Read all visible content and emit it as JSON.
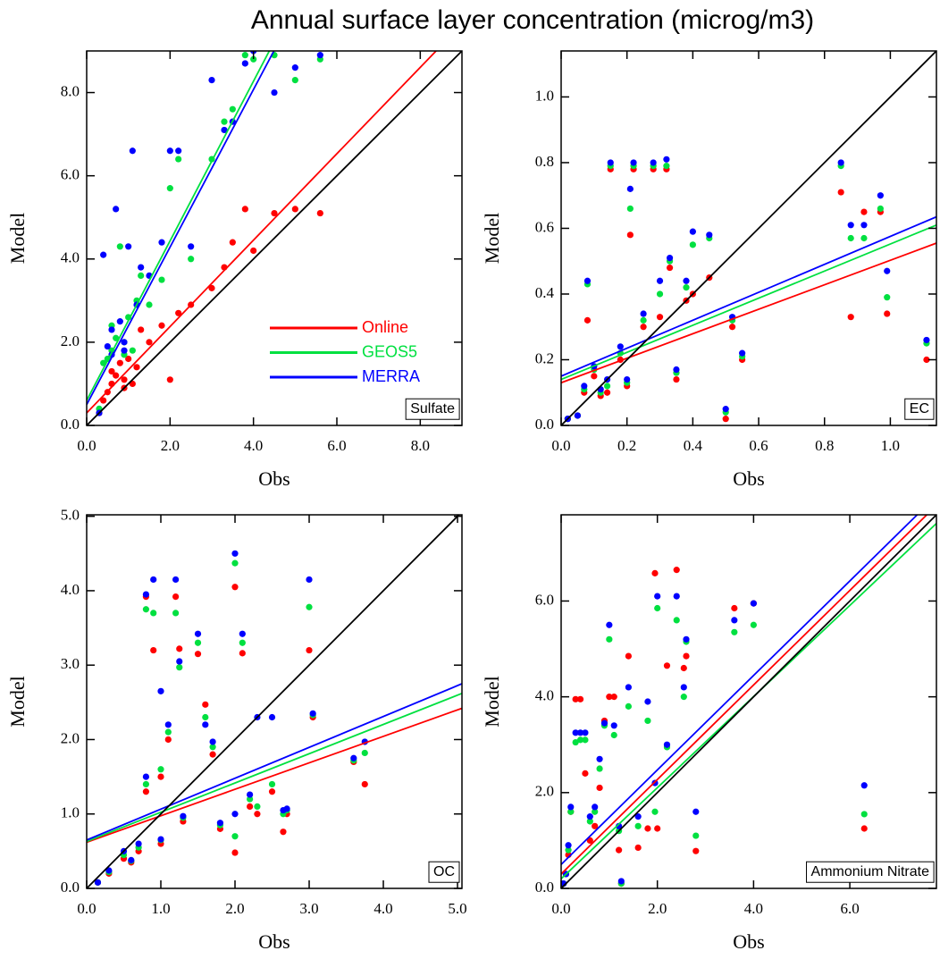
{
  "title": "Annual surface layer concentration (microg/m3)",
  "chart_data": [
    {
      "type": "scatter",
      "xlabel": "Obs",
      "ylabel": "Model",
      "annotation": "Sulfate",
      "legend": "lower right",
      "xlim": [
        0,
        9
      ],
      "ylim": [
        0,
        9
      ],
      "xticks": [
        {
          "value": 0,
          "label": "0.0"
        },
        {
          "value": 2,
          "label": "2.0"
        },
        {
          "value": 4,
          "label": "4.0"
        },
        {
          "value": 6,
          "label": "6.0"
        },
        {
          "value": 8,
          "label": "8.0"
        }
      ],
      "yticks": [
        {
          "value": 0,
          "label": "0.0"
        },
        {
          "value": 2,
          "label": "2.0"
        },
        {
          "value": 4,
          "label": "4.0"
        },
        {
          "value": 6,
          "label": "6.0"
        },
        {
          "value": 8,
          "label": "8.0"
        }
      ],
      "reference": {
        "x": [
          0,
          9
        ],
        "y": [
          0,
          9
        ],
        "color": "#000000"
      },
      "x": [
        0.3,
        0.4,
        0.5,
        0.6,
        0.6,
        0.7,
        0.8,
        0.9,
        1.0,
        1.1,
        1.2,
        1.5,
        1.8,
        2.0,
        2.2,
        2.5,
        3.0,
        3.3,
        3.5,
        3.8,
        4.0,
        4.5,
        5.0,
        5.6,
        0.9,
        1.3
      ],
      "series": [
        {
          "name": "Online",
          "color": "#ff0000",
          "values": [
            0.3,
            0.6,
            0.8,
            1.0,
            1.3,
            1.2,
            1.5,
            1.1,
            1.6,
            1.0,
            1.4,
            2.0,
            2.4,
            1.1,
            2.7,
            2.9,
            3.3,
            3.8,
            4.4,
            5.2,
            4.2,
            5.1,
            5.2,
            5.1,
            0.9,
            2.3
          ],
          "fit_x": [
            0,
            8.38
          ],
          "fit_y": [
            0.3,
            9
          ]
        },
        {
          "name": "GEOS5",
          "color": "#00e040",
          "values": [
            0.4,
            1.5,
            1.6,
            2.4,
            1.8,
            2.1,
            4.3,
            2.0,
            2.6,
            1.8,
            3.0,
            2.9,
            3.5,
            5.7,
            6.4,
            4.0,
            6.4,
            7.3,
            7.6,
            8.9,
            8.8,
            8.9,
            8.3,
            8.8,
            1.7,
            3.6
          ],
          "fit_x": [
            0,
            4.38
          ],
          "fit_y": [
            0.6,
            9
          ]
        },
        {
          "name": "MERRA",
          "color": "#0000ff",
          "values": [
            0.3,
            4.1,
            1.9,
            2.3,
            1.7,
            5.2,
            2.5,
            2.0,
            4.3,
            6.6,
            2.9,
            3.6,
            4.4,
            6.6,
            6.6,
            4.3,
            8.3,
            7.1,
            7.3,
            8.7,
            9.0,
            8.0,
            8.6,
            8.9,
            1.8,
            3.8
          ],
          "fit_x": [
            0,
            4.49
          ],
          "fit_y": [
            0.5,
            9
          ]
        }
      ]
    },
    {
      "type": "scatter",
      "xlabel": "Obs",
      "ylabel": "Model",
      "annotation": "EC",
      "xlim": [
        0,
        1.14
      ],
      "ylim": [
        0,
        1.14
      ],
      "xticks": [
        {
          "value": 0,
          "label": "0.0"
        },
        {
          "value": 0.2,
          "label": "0.2"
        },
        {
          "value": 0.4,
          "label": "0.4"
        },
        {
          "value": 0.6,
          "label": "0.6"
        },
        {
          "value": 0.8,
          "label": "0.8"
        },
        {
          "value": 1,
          "label": "1.0"
        }
      ],
      "yticks": [
        {
          "value": 0,
          "label": "0.0"
        },
        {
          "value": 0.2,
          "label": "0.2"
        },
        {
          "value": 0.4,
          "label": "0.4"
        },
        {
          "value": 0.6,
          "label": "0.6"
        },
        {
          "value": 0.8,
          "label": "0.8"
        },
        {
          "value": 1,
          "label": "1.0"
        }
      ],
      "reference": {
        "x": [
          0,
          1.14
        ],
        "y": [
          0,
          1.14
        ],
        "color": "#000000"
      },
      "x": [
        0.02,
        0.05,
        0.07,
        0.08,
        0.1,
        0.12,
        0.14,
        0.15,
        0.18,
        0.2,
        0.21,
        0.22,
        0.25,
        0.28,
        0.3,
        0.32,
        0.33,
        0.35,
        0.38,
        0.4,
        0.45,
        0.5,
        0.52,
        0.55,
        0.85,
        0.88,
        0.92,
        0.97,
        0.99,
        1.11
      ],
      "series": [
        {
          "color": "#ff0000",
          "values": [
            0.02,
            0.03,
            0.1,
            0.32,
            0.15,
            0.09,
            0.1,
            0.78,
            0.2,
            0.12,
            0.58,
            0.78,
            0.3,
            0.78,
            0.33,
            0.78,
            0.48,
            0.14,
            0.38,
            0.4,
            0.45,
            0.02,
            0.3,
            0.2,
            0.71,
            0.33,
            0.65,
            0.65,
            0.34,
            0.2
          ],
          "fit_x": [
            0,
            1.14
          ],
          "fit_y": [
            0.13,
            0.555
          ]
        },
        {
          "color": "#00e040",
          "values": [
            0.02,
            0.03,
            0.11,
            0.43,
            0.17,
            0.1,
            0.12,
            0.79,
            0.22,
            0.13,
            0.66,
            0.79,
            0.32,
            0.79,
            0.4,
            0.79,
            0.5,
            0.16,
            0.42,
            0.55,
            0.57,
            0.04,
            0.32,
            0.21,
            0.79,
            0.57,
            0.57,
            0.66,
            0.39,
            0.25
          ],
          "fit_x": [
            0,
            1.14
          ],
          "fit_y": [
            0.14,
            0.61
          ]
        },
        {
          "color": "#0000ff",
          "values": [
            0.02,
            0.03,
            0.12,
            0.44,
            0.18,
            0.11,
            0.14,
            0.8,
            0.24,
            0.14,
            0.72,
            0.8,
            0.34,
            0.8,
            0.44,
            0.81,
            0.51,
            0.17,
            0.44,
            0.59,
            0.58,
            0.05,
            0.33,
            0.22,
            0.8,
            0.61,
            0.61,
            0.7,
            0.47,
            0.26
          ],
          "fit_x": [
            0,
            1.14
          ],
          "fit_y": [
            0.15,
            0.635
          ]
        }
      ]
    },
    {
      "type": "scatter",
      "xlabel": "Obs",
      "ylabel": "Model",
      "annotation": "OC",
      "xlim": [
        0,
        5.06
      ],
      "ylim": [
        0,
        5.02
      ],
      "xticks": [
        {
          "value": 0,
          "label": "0.0"
        },
        {
          "value": 1,
          "label": "1.0"
        },
        {
          "value": 2,
          "label": "2.0"
        },
        {
          "value": 3,
          "label": "3.0"
        },
        {
          "value": 4,
          "label": "4.0"
        },
        {
          "value": 5,
          "label": "5.0"
        }
      ],
      "yticks": [
        {
          "value": 0,
          "label": "0.0"
        },
        {
          "value": 1,
          "label": "1.0"
        },
        {
          "value": 2,
          "label": "2.0"
        },
        {
          "value": 3,
          "label": "3.0"
        },
        {
          "value": 4,
          "label": "4.0"
        },
        {
          "value": 5,
          "label": "5.0"
        }
      ],
      "reference": {
        "x": [
          0,
          5.06
        ],
        "y": [
          0,
          5.06
        ],
        "color": "#000000"
      },
      "x": [
        0.15,
        0.3,
        0.5,
        0.6,
        0.7,
        0.8,
        0.8,
        0.9,
        1.0,
        1.0,
        1.1,
        1.2,
        1.25,
        1.3,
        1.5,
        1.6,
        1.7,
        1.8,
        2.0,
        2.0,
        2.1,
        2.2,
        2.3,
        2.5,
        2.65,
        2.7,
        3.0,
        3.05,
        3.6,
        3.75
      ],
      "series": [
        {
          "color": "#ff0000",
          "values": [
            0.08,
            0.2,
            0.4,
            0.35,
            0.5,
            3.92,
            1.3,
            3.2,
            0.6,
            1.5,
            2.0,
            3.92,
            3.22,
            0.9,
            3.15,
            2.47,
            1.8,
            0.8,
            4.05,
            0.48,
            3.16,
            1.1,
            1.0,
            1.3,
            0.76,
            1.0,
            3.2,
            2.3,
            1.7,
            1.4
          ],
          "fit_x": [
            0,
            5.06
          ],
          "fit_y": [
            0.62,
            2.42
          ]
        },
        {
          "color": "#00e040",
          "values": [
            0.08,
            0.22,
            0.45,
            0.37,
            0.55,
            3.75,
            1.4,
            3.7,
            0.65,
            1.6,
            2.1,
            3.7,
            2.97,
            0.95,
            3.3,
            2.3,
            1.9,
            0.85,
            4.37,
            0.7,
            3.3,
            1.2,
            1.1,
            1.4,
            1.0,
            1.05,
            3.78,
            2.33,
            1.72,
            1.82
          ],
          "fit_x": [
            0,
            5.06
          ],
          "fit_y": [
            0.63,
            2.62
          ]
        },
        {
          "color": "#0000ff",
          "values": [
            0.08,
            0.24,
            0.5,
            0.38,
            0.6,
            3.95,
            1.5,
            4.15,
            0.66,
            2.65,
            2.2,
            4.15,
            3.05,
            0.97,
            3.42,
            2.2,
            1.97,
            0.88,
            4.5,
            1.0,
            3.42,
            1.26,
            2.3,
            2.3,
            1.05,
            1.07,
            4.15,
            2.35,
            1.75,
            1.97
          ],
          "fit_x": [
            0,
            5.06
          ],
          "fit_y": [
            0.65,
            2.75
          ]
        }
      ]
    },
    {
      "type": "scatter",
      "xlabel": "Obs",
      "ylabel": "Model",
      "annotation": "Ammonium Nitrate",
      "xlim": [
        0,
        7.8
      ],
      "ylim": [
        0,
        7.8
      ],
      "xticks": [
        {
          "value": 0,
          "label": "0.0"
        },
        {
          "value": 2,
          "label": "2.0"
        },
        {
          "value": 4,
          "label": "4.0"
        },
        {
          "value": 6,
          "label": "6.0"
        }
      ],
      "yticks": [
        {
          "value": 0,
          "label": "0.0"
        },
        {
          "value": 2,
          "label": "2.0"
        },
        {
          "value": 4,
          "label": "4.0"
        },
        {
          "value": 6,
          "label": "6.0"
        }
      ],
      "reference": {
        "x": [
          0,
          7.8
        ],
        "y": [
          0,
          7.8
        ],
        "color": "#000000"
      },
      "x": [
        0.05,
        0.1,
        0.15,
        0.2,
        0.3,
        0.4,
        0.5,
        0.6,
        0.7,
        0.8,
        1.0,
        1.1,
        1.2,
        1.4,
        1.6,
        1.8,
        1.95,
        2.0,
        2.2,
        2.4,
        2.55,
        2.6,
        2.8,
        3.6,
        4.0,
        6.3,
        1.25,
        0.9
      ],
      "series": [
        {
          "color": "#ff0000",
          "values": [
            0.1,
            0.3,
            0.7,
            1.6,
            3.95,
            3.95,
            2.4,
            1.0,
            1.3,
            2.1,
            4.0,
            4.0,
            0.8,
            4.85,
            0.85,
            1.25,
            6.58,
            1.25,
            4.65,
            6.65,
            4.6,
            4.85,
            0.78,
            5.85,
            5.95,
            1.25,
            0.1,
            3.5
          ],
          "fit_x": [
            0,
            7.6
          ],
          "fit_y": [
            0.3,
            7.8
          ]
        },
        {
          "color": "#00e040",
          "values": [
            0.1,
            0.3,
            0.8,
            1.6,
            3.05,
            3.1,
            3.1,
            1.4,
            1.6,
            2.5,
            5.2,
            3.2,
            1.2,
            3.8,
            1.3,
            3.5,
            1.6,
            5.85,
            2.95,
            5.6,
            4.0,
            5.15,
            1.1,
            5.35,
            5.5,
            1.55,
            0.1,
            3.4
          ],
          "fit_x": [
            0,
            7.8
          ],
          "fit_y": [
            0.2,
            7.62
          ]
        },
        {
          "color": "#0000ff",
          "values": [
            0.1,
            0.3,
            0.9,
            1.7,
            3.25,
            3.25,
            3.25,
            1.5,
            1.7,
            2.7,
            5.5,
            3.4,
            1.3,
            4.2,
            1.5,
            3.9,
            2.2,
            6.1,
            3.0,
            6.1,
            4.2,
            5.2,
            1.6,
            5.6,
            5.95,
            2.15,
            0.15,
            3.45
          ],
          "fit_x": [
            0,
            7.4
          ],
          "fit_y": [
            0.5,
            7.8
          ]
        }
      ]
    }
  ]
}
